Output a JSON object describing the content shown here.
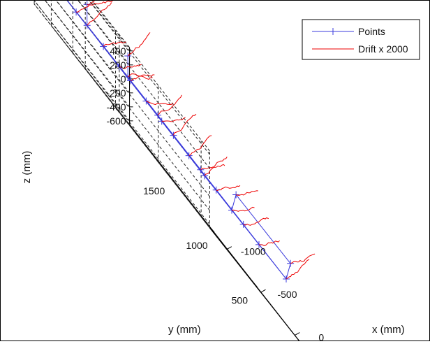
{
  "chart_data": {
    "type": "line",
    "view": "3d-perspective",
    "grid": true,
    "legend_position": "top-right",
    "axes": {
      "x": {
        "label": "x (mm)",
        "ticks": [
          0,
          -500,
          -1000
        ],
        "range": [
          -1250,
          150
        ]
      },
      "y": {
        "label": "y (mm)",
        "ticks": [
          1500,
          1000,
          500,
          0
        ],
        "range": [
          -100,
          1950
        ]
      },
      "z": {
        "label": "z (mm)",
        "ticks": [
          400,
          200,
          0,
          -200,
          -400,
          -600
        ],
        "range": [
          -650,
          450
        ]
      }
    },
    "legend": [
      {
        "label": "Points",
        "color": "#3b3bdc",
        "marker": "+"
      },
      {
        "label": "Drift x 2000",
        "color": "#ee0000"
      }
    ],
    "series": [
      {
        "name": "Points",
        "color": "#3b3bdc",
        "points": [
          {
            "x": 0,
            "y": 0,
            "z": 0
          },
          {
            "x": 0,
            "y": 500,
            "z": 0
          },
          {
            "x": 0,
            "y": 1000,
            "z": 0
          },
          {
            "x": 0,
            "y": 1500,
            "z": 0
          },
          {
            "x": -400,
            "y": 0,
            "z": 0
          },
          {
            "x": -400,
            "y": 500,
            "z": 0
          },
          {
            "x": -400,
            "y": 1000,
            "z": 0
          },
          {
            "x": -400,
            "y": 1500,
            "z": 0
          },
          {
            "x": -800,
            "y": 0,
            "z": 0
          },
          {
            "x": -800,
            "y": 500,
            "z": 0
          },
          {
            "x": -800,
            "y": 1000,
            "z": 0
          },
          {
            "x": -800,
            "y": 1500,
            "z": 0
          },
          {
            "x": -1200,
            "y": 0,
            "z": 0
          },
          {
            "x": -1200,
            "y": 500,
            "z": 0
          },
          {
            "x": -1200,
            "y": 1000,
            "z": 0
          },
          {
            "x": -1200,
            "y": 1500,
            "z": 0
          },
          {
            "x": -1200,
            "y": 1850,
            "z": 0
          },
          {
            "x": -1200,
            "y": 1850,
            "z": 300
          },
          {
            "x": -600,
            "y": 1850,
            "z": 0
          },
          {
            "x": -600,
            "y": 1850,
            "z": 300
          },
          {
            "x": 0,
            "y": 1850,
            "z": 0
          },
          {
            "x": 0,
            "y": 1850,
            "z": 300
          },
          {
            "x": 0,
            "y": -50,
            "z": 300
          },
          {
            "x": -800,
            "y": -50,
            "z": 300
          }
        ]
      }
    ]
  }
}
